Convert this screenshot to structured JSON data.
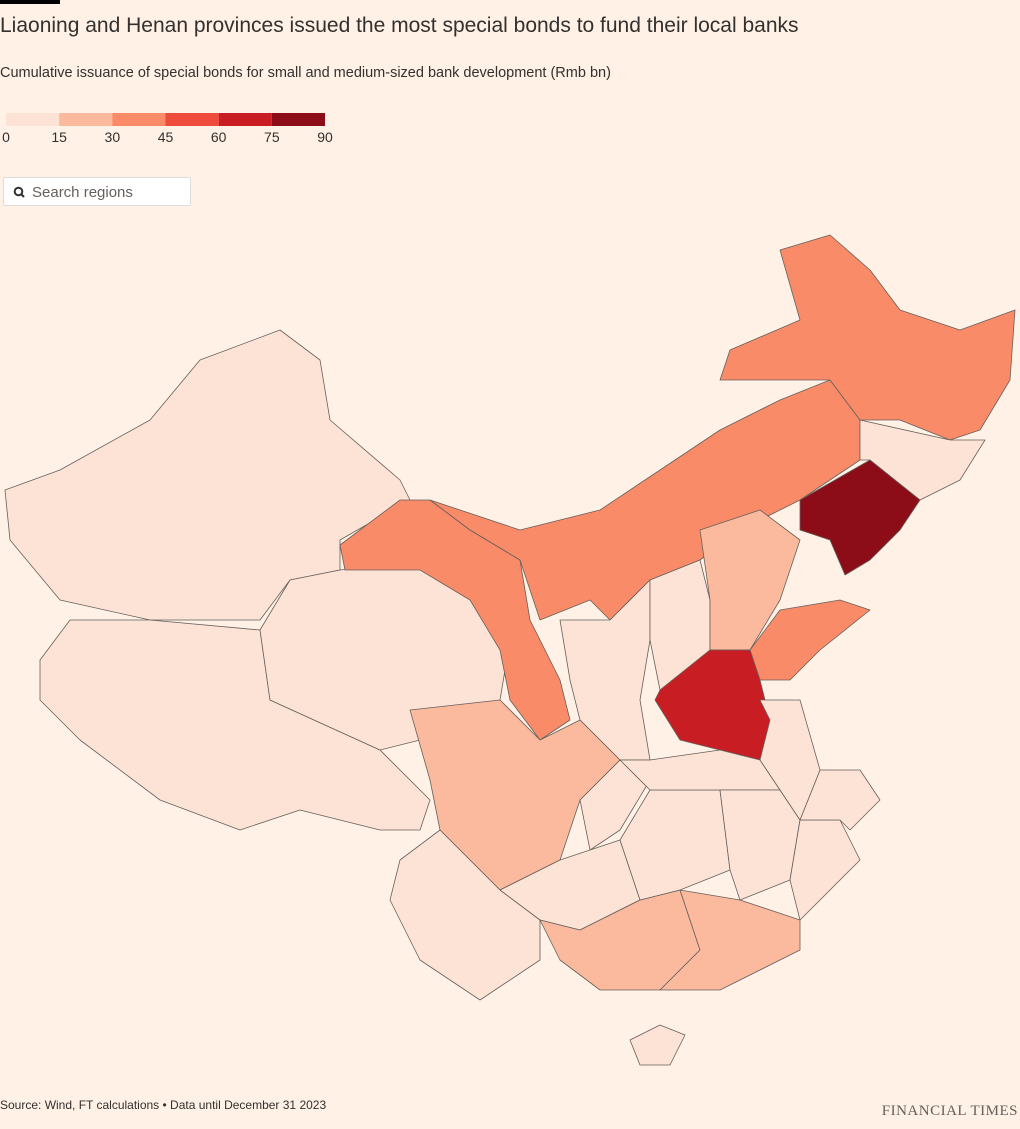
{
  "chart_data": {
    "type": "choropleth",
    "title": "Liaoning and Henan provinces issued the most special bonds to fund their local banks",
    "subtitle": "Cumulative issuance of special bonds for small and medium-sized bank development (Rmb bn)",
    "legend_ticks": [
      0,
      15,
      30,
      45,
      60,
      75,
      90
    ],
    "legend_colors": [
      "#fde3d6",
      "#fbb99d",
      "#f98b68",
      "#ef4b3c",
      "#c81d22",
      "#8c0d17"
    ],
    "search_placeholder": "Search regions",
    "values": [
      5,
      5,
      5,
      35,
      35,
      35,
      5,
      80,
      35,
      5,
      5,
      20,
      35,
      65,
      20,
      5,
      5,
      5,
      20,
      20,
      5,
      5,
      5,
      5,
      5,
      5,
      5
    ],
    "source": "Source: Wind, FT calculations • Data until December 31 2023",
    "brand": "FINANCIAL TIMES"
  }
}
